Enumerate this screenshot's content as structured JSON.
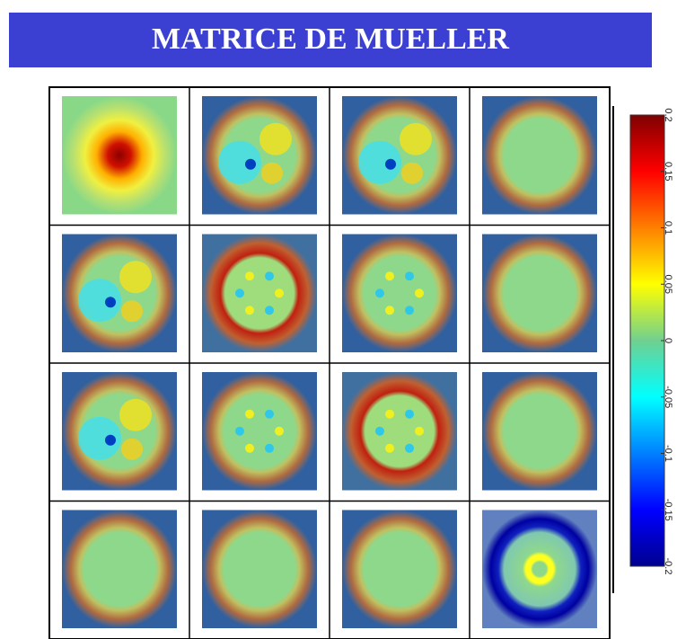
{
  "header": {
    "title": "MATRICE DE MUELLER"
  },
  "colorbar": {
    "lim": [
      -0.2,
      0.2
    ],
    "ticks": [
      0.2,
      0.15,
      0.1,
      0.05,
      0,
      -0.05,
      -0.1,
      -0.15,
      -0.2
    ]
  }
}
